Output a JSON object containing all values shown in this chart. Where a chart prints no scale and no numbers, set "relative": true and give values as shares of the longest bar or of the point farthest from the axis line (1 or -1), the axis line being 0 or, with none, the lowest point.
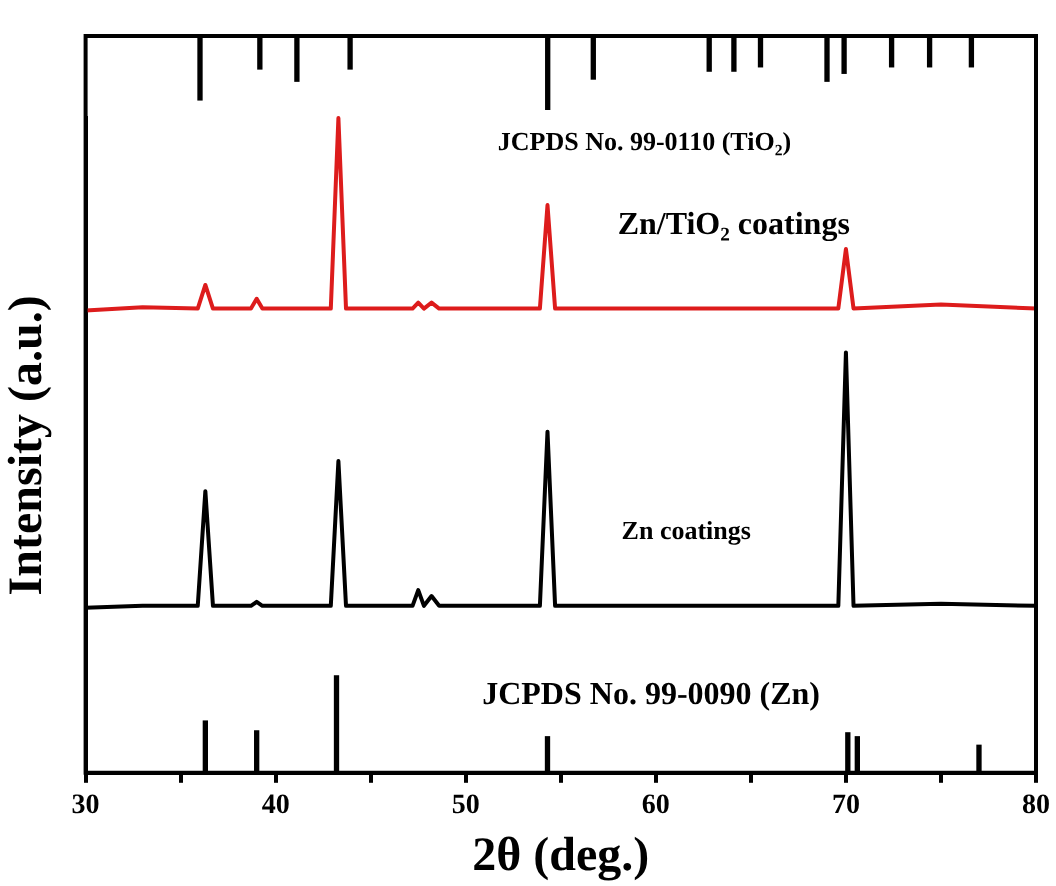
{
  "chart_data": [
    {
      "type": "line",
      "relative": true,
      "xlabel": "2θ (deg.)",
      "ylabel": "Intensity (a.u.)",
      "xlim": [
        30,
        80
      ],
      "xticks": [
        30,
        {
          "value": 35,
          "label": null
        },
        40,
        {
          "value": 45,
          "label": null
        },
        50,
        {
          "value": 55,
          "label": null
        },
        60,
        {
          "value": 65,
          "label": null
        },
        70,
        {
          "value": 75,
          "label": null
        },
        80
      ],
      "grid": false,
      "legend": false,
      "marker": "none",
      "line_style": "solid",
      "series": [
        {
          "color": "#dd1c1c",
          "x": [
            30,
            33,
            35.9,
            36.3,
            36.7,
            38.7,
            39.0,
            39.3,
            42.9,
            43.3,
            43.7,
            47.2,
            47.5,
            47.8,
            48.2,
            48.6,
            53.9,
            54.3,
            54.7,
            60,
            69.6,
            70.0,
            70.4,
            75,
            80
          ],
          "values": [
            0.706,
            0.711,
            0.709,
            0.745,
            0.709,
            0.709,
            0.724,
            0.709,
            0.709,
            1,
            0.709,
            0.709,
            0.718,
            0.709,
            0.718,
            0.709,
            0.709,
            0.867,
            0.709,
            0.709,
            0.709,
            0.8,
            0.709,
            0.715,
            0.709
          ]
        },
        {
          "color": "#000000",
          "x": [
            30,
            33,
            35.9,
            36.3,
            36.7,
            38.7,
            39.0,
            39.3,
            42.9,
            43.3,
            43.7,
            47.2,
            47.5,
            47.8,
            48.2,
            48.6,
            53.9,
            54.3,
            54.7,
            60,
            69.6,
            70.0,
            70.4,
            75,
            80
          ],
          "values": [
            0.252,
            0.255,
            0.255,
            0.43,
            0.255,
            0.255,
            0.261,
            0.255,
            0.255,
            0.476,
            0.255,
            0.255,
            0.279,
            0.255,
            0.27,
            0.255,
            0.255,
            0.521,
            0.255,
            0.255,
            0.255,
            0.642,
            0.255,
            0.258,
            0.255
          ]
        },
        {
          "type": "bar",
          "color": "#000000",
          "x": [
            36.3,
            39.0,
            43.2,
            54.3,
            70.1,
            70.6,
            77.0
          ],
          "values": [
            0.079,
            0.064,
            0.148,
            0.055,
            0.061,
            0.055,
            0.042
          ]
        }
      ],
      "annotations": [
        "JCPDS No. 99-0110 (TiO₂)",
        "Zn/TiO₂ coatings",
        "Zn coatings",
        "JCPDS No. 99-0090 (Zn)"
      ]
    },
    {
      "type": "bar",
      "relative": true,
      "xlim": [
        30,
        80
      ],
      "tick_labels": false,
      "legend": false,
      "color": "#000000",
      "x": [
        36.0,
        39.15,
        41.1,
        43.9,
        54.3,
        56.7,
        62.8,
        64.1,
        65.5,
        69.0,
        69.9,
        72.4,
        74.4,
        76.6
      ],
      "values": [
        -0.86,
        -0.43,
        -0.6,
        -0.43,
        -1,
        -0.57,
        -0.46,
        -0.46,
        -0.4,
        -0.6,
        -0.49,
        -0.4,
        -0.4,
        -0.4
      ]
    }
  ]
}
